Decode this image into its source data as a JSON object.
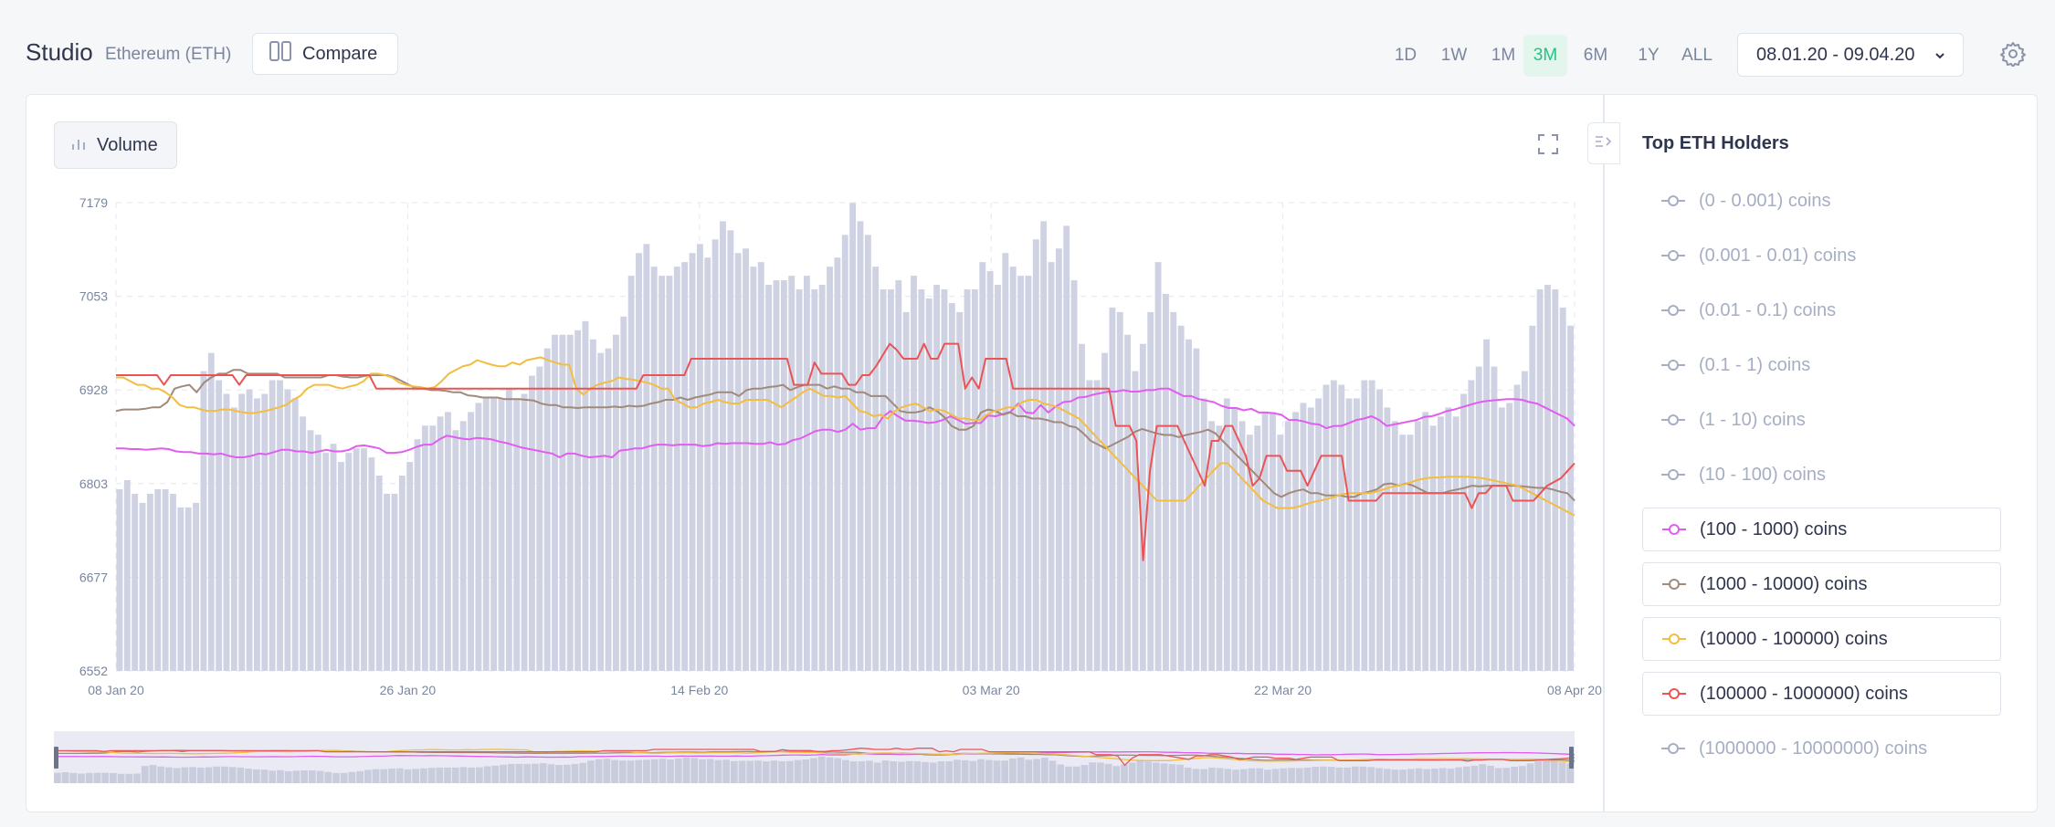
{
  "header": {
    "title": "Studio",
    "asset": "Ethereum (ETH)",
    "compare_label": "Compare",
    "ranges": [
      "1D",
      "1W",
      "1M",
      "3M",
      "6M",
      "1Y",
      "ALL"
    ],
    "active_range": "3M",
    "date_range": "08.01.20 - 09.04.20"
  },
  "toolbar": {
    "volume_label": "Volume"
  },
  "sidebar": {
    "title": "Top ETH Holders",
    "items": [
      {
        "label": "(0 - 0.001) coins",
        "active": false,
        "color": "#a5aec3"
      },
      {
        "label": "(0.001 - 0.01) coins",
        "active": false,
        "color": "#a5aec3"
      },
      {
        "label": "(0.01 - 0.1) coins",
        "active": false,
        "color": "#a5aec3"
      },
      {
        "label": "(0.1 - 1) coins",
        "active": false,
        "color": "#a5aec3"
      },
      {
        "label": "(1 - 10) coins",
        "active": false,
        "color": "#a5aec3"
      },
      {
        "label": "(10 - 100) coins",
        "active": false,
        "color": "#a5aec3"
      },
      {
        "label": "(100 - 1000) coins",
        "active": true,
        "color": "#e25cf0"
      },
      {
        "label": "(1000 - 10000) coins",
        "active": true,
        "color": "#a08a7c"
      },
      {
        "label": "(10000 - 100000) coins",
        "active": true,
        "color": "#f3bd3f"
      },
      {
        "label": "(100000 - 1000000) coins",
        "active": true,
        "color": "#ea5454"
      },
      {
        "label": "(1000000 - 10000000) coins",
        "active": false,
        "color": "#a5aec3"
      }
    ]
  },
  "chart_data": {
    "type": "line",
    "x_start": "08 Jan 20",
    "x_end": "08 Apr 20",
    "x_ticks": [
      "08 Jan 20",
      "26 Jan 20",
      "14 Feb 20",
      "03 Mar 20",
      "22 Mar 20",
      "08 Apr 20"
    ],
    "y_ticks": [
      "7179",
      "7053",
      "6928",
      "6803",
      "6677",
      "6552"
    ],
    "ylim": [
      6552,
      7179
    ],
    "grid": true,
    "colors": {
      "volume": "#cfd2e3",
      "grid": "#e4e8ef",
      "axis_text": "#7a859e"
    },
    "volume": [
      40,
      42,
      39,
      37,
      39,
      40,
      40,
      39,
      36,
      36,
      37,
      66,
      70,
      64,
      61,
      58,
      61,
      62,
      60,
      61,
      64,
      64,
      62,
      60,
      56,
      53,
      52,
      48,
      50,
      46,
      48,
      49,
      49,
      47,
      43,
      39,
      39,
      43,
      46,
      51,
      54,
      54,
      56,
      57,
      53,
      55,
      57,
      59,
      60,
      60,
      60,
      62,
      60,
      61,
      65,
      67,
      71,
      74,
      74,
      74,
      75,
      77,
      73,
      70,
      71,
      74,
      78,
      87,
      92,
      94,
      89,
      87,
      87,
      89,
      90,
      92,
      94,
      91,
      95,
      99,
      97,
      92,
      93,
      89,
      90,
      85,
      86,
      86,
      87,
      84,
      87,
      84,
      85,
      89,
      91,
      96,
      103,
      99,
      96,
      89,
      84,
      84,
      86,
      79,
      87,
      84,
      82,
      85,
      84,
      81,
      79,
      84,
      84,
      90,
      88,
      85,
      92,
      89,
      87,
      87,
      95,
      99,
      90,
      93,
      98,
      86,
      72,
      64,
      64,
      70,
      80,
      79,
      74,
      66,
      72,
      79,
      90,
      83,
      79,
      76,
      73,
      71,
      60,
      55,
      54,
      60,
      58,
      55,
      52,
      54,
      57,
      57,
      52,
      55,
      57,
      59,
      58,
      60,
      63,
      64,
      63,
      60,
      60,
      64,
      64,
      62,
      58,
      55,
      52,
      52,
      55,
      57,
      54,
      56,
      58,
      56,
      61,
      64,
      67,
      73,
      67,
      58,
      59,
      63,
      66,
      76,
      84,
      85,
      84,
      80,
      76
    ],
    "series": [
      {
        "name": "(100 - 1000) coins",
        "color": "#e25cf0",
        "values": [
          6850,
          6850,
          6849,
          6849,
          6848,
          6849,
          6850,
          6849,
          6846,
          6845,
          6845,
          6843,
          6843,
          6842,
          6843,
          6840,
          6838,
          6838,
          6840,
          6843,
          6842,
          6845,
          6848,
          6848,
          6846,
          6846,
          6844,
          6846,
          6848,
          6846,
          6846,
          6848,
          6853,
          6854,
          6852,
          6850,
          6844,
          6844,
          6845,
          6848,
          6852,
          6855,
          6855,
          6862,
          6867,
          6865,
          6863,
          6862,
          6864,
          6863,
          6862,
          6859,
          6857,
          6854,
          6851,
          6849,
          6847,
          6845,
          6843,
          6838,
          6843,
          6843,
          6840,
          6838,
          6839,
          6840,
          6838,
          6847,
          6848,
          6850,
          6850,
          6853,
          6855,
          6855,
          6854,
          6855,
          6855,
          6855,
          6853,
          6854,
          6857,
          6856,
          6857,
          6857,
          6857,
          6856,
          6856,
          6858,
          6855,
          6856,
          6861,
          6863,
          6868,
          6873,
          6875,
          6875,
          6872,
          6875,
          6883,
          6875,
          6877,
          6877,
          6892,
          6900,
          6893,
          6887,
          6887,
          6886,
          6884,
          6885,
          6888,
          6893,
          6888,
          6883,
          6884,
          6884,
          6894,
          6893,
          6896,
          6899,
          6910,
          6898,
          6897,
          6908,
          6898,
          6906,
          6912,
          6913,
          6918,
          6919,
          6922,
          6924,
          6926,
          6926,
          6928,
          6926,
          6926,
          6928,
          6928,
          6930,
          6930,
          6925,
          6920,
          6920,
          6916,
          6914,
          6912,
          6907,
          6904,
          6904,
          6901,
          6903,
          6898,
          6898,
          6897,
          6895,
          6888,
          6888,
          6886,
          6883,
          6882,
          6877,
          6880,
          6880,
          6884,
          6888,
          6890,
          6893,
          6888,
          6880,
          6882,
          6884,
          6886,
          6888,
          6892,
          6893,
          6896,
          6900,
          6902,
          6905,
          6908,
          6911,
          6913,
          6914,
          6915,
          6916,
          6916,
          6915,
          6912,
          6910,
          6905,
          6900,
          6895,
          6890,
          6880
        ]
      },
      {
        "name": "(1000 - 10000) coins",
        "color": "#a08a7c",
        "values": [
          6900,
          6902,
          6902,
          6902,
          6903,
          6905,
          6905,
          6912,
          6930,
          6933,
          6935,
          6925,
          6938,
          6945,
          6950,
          6950,
          6955,
          6955,
          6950,
          6950,
          6950,
          6950,
          6950,
          6945,
          6945,
          6945,
          6945,
          6945,
          6945,
          6948,
          6948,
          6946,
          6945,
          6945,
          6947,
          6948,
          6948,
          6948,
          6945,
          6940,
          6935,
          6930,
          6930,
          6928,
          6928,
          6927,
          6925,
          6925,
          6921,
          6920,
          6918,
          6918,
          6918,
          6916,
          6916,
          6916,
          6915,
          6914,
          6910,
          6908,
          6908,
          6905,
          6905,
          6904,
          6905,
          6905,
          6905,
          6905,
          6906,
          6905,
          6907,
          6906,
          6907,
          6910,
          6912,
          6915,
          6915,
          6918,
          6915,
          6918,
          6920,
          6922,
          6925,
          6925,
          6925,
          6920,
          6928,
          6930,
          6930,
          6932,
          6933,
          6935,
          6928,
          6932,
          6935,
          6935,
          6935,
          6930,
          6933,
          6930,
          6930,
          6925,
          6925,
          6920,
          6920,
          6920,
          6910,
          6900,
          6898,
          6898,
          6900,
          6905,
          6900,
          6892,
          6880,
          6875,
          6875,
          6880,
          6898,
          6902,
          6900,
          6895,
          6898,
          6893,
          6893,
          6890,
          6890,
          6888,
          6885,
          6885,
          6880,
          6878,
          6870,
          6860,
          6855,
          6850,
          6855,
          6860,
          6865,
          6872,
          6876,
          6873,
          6870,
          6868,
          6868,
          6865,
          6868,
          6870,
          6872,
          6875,
          6870,
          6860,
          6850,
          6840,
          6830,
          6820,
          6810,
          6800,
          6790,
          6785,
          6790,
          6793,
          6795,
          6790,
          6790,
          6787,
          6787,
          6787,
          6785,
          6785,
          6790,
          6792,
          6795,
          6802,
          6803,
          6800,
          6803,
          6800,
          6795,
          6790,
          6790,
          6790,
          6793,
          6795,
          6797,
          6800,
          6799,
          6800,
          6800,
          6800,
          6800,
          6800,
          6799,
          6798,
          6797,
          6797,
          6795,
          6792,
          6790,
          6780
        ]
      },
      {
        "name": "(10000 - 100000) coins",
        "color": "#f3bd3f",
        "values": [
          6945,
          6945,
          6940,
          6935,
          6935,
          6930,
          6930,
          6925,
          6918,
          6908,
          6905,
          6905,
          6902,
          6900,
          6900,
          6902,
          6902,
          6900,
          6898,
          6897,
          6898,
          6900,
          6902,
          6905,
          6908,
          6915,
          6920,
          6930,
          6935,
          6935,
          6935,
          6932,
          6930,
          6933,
          6935,
          6940,
          6950,
          6950,
          6948,
          6945,
          6938,
          6935,
          6933,
          6932,
          6930,
          6932,
          6940,
          6950,
          6955,
          6960,
          6962,
          6968,
          6965,
          6962,
          6960,
          6960,
          6965,
          6962,
          6968,
          6970,
          6972,
          6968,
          6965,
          6962,
          6962,
          6930,
          6922,
          6930,
          6935,
          6938,
          6940,
          6945,
          6943,
          6942,
          6940,
          6938,
          6935,
          6930,
          6930,
          6915,
          6910,
          6905,
          6905,
          6910,
          6912,
          6915,
          6912,
          6910,
          6910,
          6915,
          6915,
          6915,
          6915,
          6910,
          6905,
          6912,
          6918,
          6925,
          6930,
          6925,
          6920,
          6920,
          6918,
          6920,
          6910,
          6900,
          6898,
          6893,
          6895,
          6890,
          6900,
          6905,
          6908,
          6910,
          6905,
          6900,
          6902,
          6900,
          6895,
          6890,
          6890,
          6888,
          6888,
          6895,
          6900,
          6902,
          6905,
          6905,
          6912,
          6915,
          6915,
          6910,
          6908,
          6905,
          6900,
          6895,
          6890,
          6880,
          6870,
          6860,
          6850,
          6840,
          6830,
          6820,
          6810,
          6800,
          6790,
          6780,
          6780,
          6780,
          6780,
          6780,
          6790,
          6800,
          6810,
          6820,
          6830,
          6830,
          6820,
          6810,
          6800,
          6790,
          6780,
          6775,
          6770,
          6770,
          6770,
          6772,
          6775,
          6778,
          6780,
          6782,
          6785,
          6788,
          6790,
          6790,
          6790,
          6790,
          6792,
          6795,
          6798,
          6800,
          6802,
          6805,
          6808,
          6810,
          6811,
          6811,
          6812,
          6812,
          6812,
          6812,
          6811,
          6810,
          6808,
          6806,
          6804,
          6802,
          6800,
          6795,
          6790,
          6785,
          6780,
          6775,
          6770,
          6765,
          6760
        ]
      },
      {
        "name": "(100000 - 1000000) coins",
        "color": "#ea5454",
        "values": [
          6948,
          6948,
          6948,
          6948,
          6948,
          6948,
          6948,
          6935,
          6948,
          6948,
          6948,
          6948,
          6948,
          6948,
          6948,
          6948,
          6948,
          6948,
          6935,
          6948,
          6948,
          6948,
          6948,
          6948,
          6948,
          6948,
          6948,
          6948,
          6948,
          6948,
          6948,
          6948,
          6948,
          6948,
          6948,
          6948,
          6948,
          6948,
          6930,
          6930,
          6930,
          6930,
          6930,
          6930,
          6930,
          6930,
          6930,
          6930,
          6930,
          6930,
          6930,
          6930,
          6930,
          6930,
          6930,
          6930,
          6930,
          6930,
          6930,
          6930,
          6930,
          6930,
          6930,
          6930,
          6930,
          6930,
          6930,
          6930,
          6930,
          6930,
          6930,
          6930,
          6930,
          6930,
          6930,
          6930,
          6930,
          6948,
          6948,
          6948,
          6948,
          6948,
          6948,
          6948,
          6970,
          6970,
          6970,
          6970,
          6970,
          6970,
          6970,
          6970,
          6970,
          6970,
          6970,
          6970,
          6970,
          6970,
          6970,
          6935,
          6935,
          6935,
          6965,
          6950,
          6950,
          6950,
          6950,
          6935,
          6935,
          6948,
          6948,
          6960,
          6975,
          6990,
          6982,
          6970,
          6970,
          6970,
          6990,
          6970,
          6970,
          6990,
          6990,
          6990,
          6930,
          6945,
          6930,
          6970,
          6970,
          6970,
          6970,
          6930,
          6930,
          6930,
          6930,
          6930,
          6930,
          6930,
          6930,
          6930,
          6930,
          6930,
          6930,
          6930,
          6930,
          6930,
          6880,
          6880,
          6880,
          6860,
          6700,
          6820,
          6880,
          6880,
          6880,
          6880,
          6860,
          6840,
          6820,
          6800,
          6860,
          6860,
          6880,
          6880,
          6860,
          6840,
          6800,
          6810,
          6840,
          6840,
          6840,
          6820,
          6820,
          6820,
          6800,
          6820,
          6840,
          6840,
          6840,
          6840,
          6780,
          6780,
          6780,
          6780,
          6780,
          6790,
          6790,
          6790,
          6790,
          6790,
          6790,
          6790,
          6790,
          6790,
          6790,
          6790,
          6790,
          6790,
          6770,
          6790,
          6790,
          6800,
          6800,
          6800,
          6780,
          6780,
          6780,
          6780,
          6790,
          6800,
          6805,
          6810,
          6820,
          6830
        ]
      }
    ]
  }
}
